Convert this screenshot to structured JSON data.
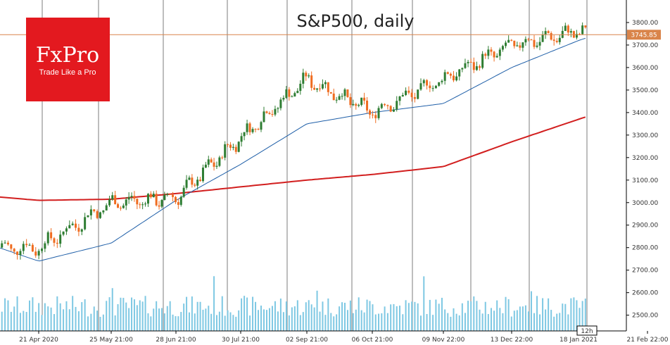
{
  "chart_data": {
    "type": "candlestick",
    "title": "S&P500, daily",
    "instrument": "S&P500",
    "timeframe": "daily",
    "y_range": [
      2430,
      3900
    ],
    "y_ticks": [
      2500,
      2600,
      2700,
      2800,
      2900,
      3000,
      3100,
      3200,
      3300,
      3400,
      3500,
      3600,
      3700,
      3800
    ],
    "y_tick_labels": [
      "2500.00",
      "2600.00",
      "2700.00",
      "2800.00",
      "2900.00",
      "3000.00",
      "3100.00",
      "3200.00",
      "3300.00",
      "3400.00",
      "3500.00",
      "3600.00",
      "3700.00",
      "3800.00"
    ],
    "x_labels": [
      "21 Apr 2020",
      "25 May 21:00",
      "28 Jun 21:00",
      "30 Jul 21:00",
      "02 Sep 21:00",
      "06 Oct 21:00",
      "09 Nov 22:00",
      "13 Dec 22:00",
      "18 Jan 2021",
      "21 Feb 22:00"
    ],
    "current_price": 3745.85,
    "current_price_label": "3745.85",
    "timeframe_badge": "12h",
    "up_color": "#2e7d32",
    "down_color": "#ef6c20",
    "ma_fast_color": "#1f5fa8",
    "ma_slow_color": "#d21f1f",
    "volume_color": "#7ec8e3",
    "price_line_color": "#d9844a",
    "path": [
      [
        "21 Apr 2020",
        2800
      ],
      [
        "25 May 21:00",
        3000
      ],
      [
        "28 Jun 21:00",
        3020
      ],
      [
        "30 Jul 21:00",
        3290
      ],
      [
        "02 Sep 21:00",
        3550
      ],
      [
        "06 Oct 21:00",
        3400
      ],
      [
        "09 Nov 22:00",
        3550
      ],
      [
        "13 Dec 22:00",
        3700
      ],
      [
        "18 Jan 2021",
        3760
      ]
    ],
    "ma_fast": [
      [
        "21 Apr 2020",
        2740
      ],
      [
        "25 May 21:00",
        2820
      ],
      [
        "28 Jun 21:00",
        3010
      ],
      [
        "30 Jul 21:00",
        3170
      ],
      [
        "02 Sep 21:00",
        3350
      ],
      [
        "06 Oct 21:00",
        3400
      ],
      [
        "09 Nov 22:00",
        3440
      ],
      [
        "13 Dec 22:00",
        3600
      ],
      [
        "18 Jan 2021",
        3720
      ]
    ],
    "ma_slow": [
      [
        "21 Apr 2020",
        3010
      ],
      [
        "25 May 21:00",
        3015
      ],
      [
        "28 Jun 21:00",
        3040
      ],
      [
        "30 Jul 21:00",
        3070
      ],
      [
        "02 Sep 21:00",
        3100
      ],
      [
        "06 Oct 21:00",
        3125
      ],
      [
        "09 Nov 22:00",
        3160
      ],
      [
        "13 Dec 22:00",
        3270
      ],
      [
        "18 Jan 2021",
        3370
      ]
    ]
  },
  "logo": {
    "brand": "FxPro",
    "tagline": "Trade Like a Pro",
    "color": "#e3191f"
  }
}
